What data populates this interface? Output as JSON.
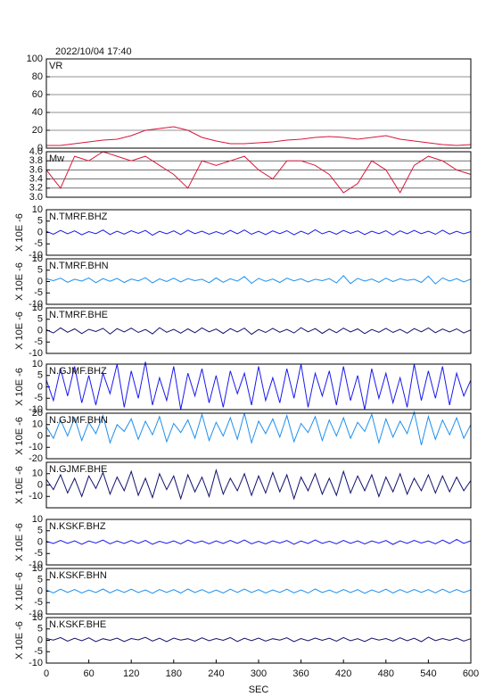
{
  "chart_data": [
    {
      "type": "line",
      "title": "2022/10/04 17:40",
      "label": "VR",
      "color": "#d8163c",
      "x": [
        0,
        20,
        40,
        60,
        80,
        100,
        120,
        140,
        160,
        180,
        200,
        220,
        240,
        260,
        280,
        300,
        320,
        340,
        360,
        380,
        400,
        420,
        440,
        460,
        480,
        500,
        520,
        540,
        560,
        580,
        600
      ],
      "values": [
        3,
        3,
        5,
        7,
        9,
        10,
        14,
        20,
        22,
        24,
        20,
        12,
        8,
        5,
        5,
        6,
        7,
        9,
        10,
        12,
        13,
        12,
        10,
        12,
        14,
        10,
        8,
        6,
        4,
        3,
        4
      ],
      "xlim": [
        0,
        600
      ],
      "ylim": [
        0,
        100
      ],
      "yticks": [
        0,
        20,
        40,
        60,
        80,
        100
      ],
      "grid": true
    },
    {
      "type": "line",
      "label": "Mw",
      "color": "#d8163c",
      "x": [
        0,
        20,
        40,
        60,
        80,
        100,
        120,
        140,
        160,
        180,
        200,
        220,
        240,
        260,
        280,
        300,
        320,
        340,
        360,
        380,
        400,
        420,
        440,
        460,
        480,
        500,
        520,
        540,
        560,
        580,
        600
      ],
      "values": [
        3.6,
        3.2,
        3.9,
        3.8,
        4.0,
        3.9,
        3.8,
        3.9,
        3.7,
        3.5,
        3.2,
        3.8,
        3.7,
        3.8,
        3.9,
        3.6,
        3.4,
        3.8,
        3.8,
        3.7,
        3.5,
        3.1,
        3.3,
        3.8,
        3.6,
        3.1,
        3.7,
        3.9,
        3.8,
        3.6,
        3.5
      ],
      "xlim": [
        0,
        600
      ],
      "ylim": [
        3,
        4
      ],
      "yticks": [
        {
          "value": 3,
          "label": "3.0"
        },
        3.2,
        3.4,
        3.6,
        3.8,
        {
          "value": 4,
          "label": "4.0"
        }
      ],
      "grid": true
    },
    {
      "type": "line",
      "xlabel": "SEC",
      "xlim": [
        0,
        600
      ],
      "xticks": [
        0,
        60,
        120,
        180,
        240,
        300,
        360,
        420,
        480,
        540,
        600
      ],
      "x": [
        0,
        10,
        20,
        30,
        40,
        50,
        60,
        70,
        80,
        90,
        100,
        110,
        120,
        130,
        140,
        150,
        160,
        170,
        180,
        190,
        200,
        210,
        220,
        230,
        240,
        250,
        260,
        270,
        280,
        290,
        300,
        310,
        320,
        330,
        340,
        350,
        360,
        370,
        380,
        390,
        400,
        410,
        420,
        430,
        440,
        450,
        460,
        470,
        480,
        490,
        500,
        510,
        520,
        530,
        540,
        550,
        560,
        570,
        580,
        590,
        600
      ],
      "series": [
        {
          "name": "N.TMRF.BHZ",
          "color": "#1a1aee",
          "ylabel": "X 10E -6",
          "ylim": [
            -10,
            10
          ],
          "yticks": [
            -10,
            -5,
            0,
            5,
            10
          ],
          "values": [
            0.5,
            -0.8,
            0.9,
            -0.6,
            0.7,
            -1.0,
            0.4,
            -0.5,
            1.1,
            -0.9,
            0.6,
            -0.7,
            0.8,
            -0.4,
            0.9,
            -1.2,
            0.5,
            -0.6,
            0.7,
            -0.9,
            1.0,
            -0.5,
            0.6,
            -0.8,
            0.4,
            -0.7,
            0.9,
            -0.6,
            1.1,
            -0.8,
            0.5,
            -0.9,
            0.7,
            -0.5,
            0.8,
            -1.0,
            0.6,
            -0.7,
            1.2,
            -0.6,
            0.5,
            -0.8,
            0.9,
            -0.4,
            0.7,
            -0.9,
            0.6,
            -0.5,
            0.8,
            -1.1,
            0.7,
            -0.6,
            0.9,
            -0.5,
            0.6,
            -0.8,
            1.0,
            -0.7,
            0.5,
            -0.6,
            0.4
          ]
        },
        {
          "name": "N.TMRF.BHN",
          "color": "#1e8fef",
          "ylabel": "X 10E -6",
          "ylim": [
            -10,
            10
          ],
          "yticks": [
            -10,
            -5,
            0,
            5,
            10
          ],
          "values": [
            1.2,
            0.4,
            1.5,
            -0.3,
            1.0,
            0.2,
            1.6,
            -0.5,
            1.3,
            0.1,
            1.4,
            -0.4,
            1.1,
            0.3,
            1.7,
            -0.6,
            1.2,
            0.0,
            1.5,
            -0.2,
            1.3,
            0.4,
            1.0,
            -0.5,
            1.6,
            -0.3,
            1.2,
            0.2,
            2.2,
            -0.8,
            1.4,
            0.1,
            1.1,
            -0.4,
            1.5,
            0.3,
            1.2,
            -0.2,
            1.0,
            0.4,
            1.3,
            -0.6,
            2.6,
            -0.9,
            1.4,
            0.2,
            1.1,
            -0.3,
            1.5,
            0.0,
            1.2,
            0.5,
            1.0,
            -0.4,
            2.4,
            -1.0,
            1.6,
            0.2,
            1.3,
            -0.2,
            1.1
          ]
        },
        {
          "name": "N.TMRF.BHE",
          "color": "#12126e",
          "ylabel": "X 10E -6",
          "ylim": [
            -10,
            10
          ],
          "yticks": [
            -10,
            -5,
            0,
            5,
            10
          ],
          "values": [
            0.4,
            -1.0,
            1.2,
            -0.7,
            0.8,
            -1.3,
            0.6,
            -0.4,
            1.0,
            -1.5,
            0.9,
            -0.6,
            1.1,
            -0.8,
            0.5,
            -1.4,
            1.3,
            -0.7,
            0.6,
            -1.1,
            0.8,
            -0.9,
            1.2,
            -0.5,
            0.7,
            -1.2,
            0.9,
            -0.6,
            1.1,
            -1.6,
            0.5,
            -0.8,
            1.0,
            -0.7,
            0.6,
            -1.0,
            1.3,
            -0.5,
            0.9,
            -1.2,
            0.7,
            -0.9,
            1.1,
            -0.6,
            0.8,
            -1.3,
            0.5,
            -0.7,
            1.0,
            -0.8,
            0.6,
            -1.1,
            0.9,
            -0.5,
            1.2,
            -0.9,
            0.7,
            -0.6,
            0.8,
            -1.0,
            0.3
          ]
        },
        {
          "name": "N.GJMF.BHZ",
          "color": "#1a1aee",
          "ylabel": "X 10E -6",
          "ylim": [
            -10,
            10
          ],
          "yticks": [
            -10,
            -5,
            0,
            5,
            10
          ],
          "values": [
            3,
            -6,
            8,
            -4,
            9,
            -7,
            5,
            -8,
            6,
            -3,
            10,
            -9,
            7,
            -5,
            11,
            -8,
            4,
            -6,
            9,
            -10,
            6,
            -4,
            8,
            -7,
            5,
            -9,
            7,
            -3,
            6,
            -8,
            9,
            -6,
            4,
            -7,
            8,
            -5,
            10,
            -9,
            6,
            -4,
            7,
            -8,
            9,
            -6,
            5,
            -10,
            8,
            -5,
            6,
            -7,
            4,
            -9,
            10,
            -6,
            7,
            -5,
            9,
            -8,
            6,
            -4,
            3
          ]
        },
        {
          "name": "N.GJMF.BHN",
          "color": "#1e8fef",
          "ylabel": "X 10E -6",
          "ylim": [
            -20,
            20
          ],
          "yticks": [
            -20,
            -10,
            0,
            10,
            20
          ],
          "values": [
            8,
            -2,
            14,
            0,
            16,
            -4,
            12,
            2,
            18,
            -6,
            10,
            4,
            15,
            -3,
            13,
            1,
            17,
            -5,
            11,
            3,
            14,
            -2,
            19,
            -4,
            12,
            0,
            16,
            -3,
            20,
            -6,
            13,
            2,
            15,
            -1,
            18,
            -5,
            11,
            3,
            17,
            -4,
            14,
            0,
            16,
            -2,
            12,
            4,
            19,
            -6,
            15,
            -1,
            13,
            2,
            21,
            -8,
            17,
            -3,
            14,
            1,
            16,
            -2,
            10
          ]
        },
        {
          "name": "N.GJMF.BHE",
          "color": "#12126e",
          "ylabel": "X 10E -6",
          "ylim": [
            -20,
            20
          ],
          "yticks": [
            -10,
            0,
            10
          ],
          "values": [
            5,
            -4,
            9,
            -7,
            6,
            -10,
            8,
            -3,
            11,
            -8,
            7,
            -5,
            12,
            -9,
            6,
            -11,
            10,
            -4,
            8,
            -12,
            9,
            -6,
            7,
            -10,
            13,
            -8,
            6,
            -5,
            10,
            -9,
            8,
            -7,
            11,
            -6,
            9,
            -12,
            7,
            -5,
            10,
            -8,
            6,
            -9,
            12,
            -7,
            8,
            -5,
            9,
            -10,
            7,
            -6,
            10,
            -8,
            6,
            -5,
            9,
            -7,
            8,
            -6,
            7,
            -5,
            4
          ]
        },
        {
          "name": "N.KSKF.BHZ",
          "color": "#1a1aee",
          "ylabel": "X 10E -6",
          "ylim": [
            -10,
            10
          ],
          "yticks": [
            -10,
            -5,
            0,
            5,
            10
          ],
          "values": [
            0.4,
            -0.6,
            0.8,
            -0.5,
            0.6,
            -0.9,
            0.5,
            -0.4,
            0.9,
            -0.7,
            0.5,
            -0.6,
            0.7,
            -0.5,
            0.8,
            -0.9,
            0.4,
            -0.5,
            0.6,
            -0.8,
            0.9,
            -0.4,
            0.5,
            -0.7,
            0.6,
            -0.6,
            0.8,
            -0.5,
            1.0,
            -0.7,
            0.4,
            -0.8,
            0.6,
            -0.4,
            0.7,
            -0.9,
            0.5,
            -0.6,
            1.0,
            -0.5,
            0.4,
            -0.7,
            0.8,
            -0.5,
            0.6,
            -0.8,
            0.5,
            -0.4,
            0.7,
            -1.0,
            0.6,
            -0.5,
            0.8,
            -0.4,
            0.5,
            -0.7,
            0.9,
            -0.6,
            1.2,
            -0.5,
            0.6
          ]
        },
        {
          "name": "N.KSKF.BHN",
          "color": "#1e8fef",
          "ylabel": "X 10E -6",
          "ylim": [
            -10,
            10
          ],
          "yticks": [
            -10,
            -5,
            0,
            5,
            10
          ],
          "values": [
            0.6,
            -0.7,
            0.9,
            -0.5,
            0.8,
            -0.8,
            0.5,
            -0.6,
            1.0,
            -0.7,
            0.7,
            -0.5,
            0.9,
            -0.6,
            0.6,
            -0.9,
            0.8,
            -0.5,
            0.7,
            -0.8,
            1.0,
            -0.6,
            0.7,
            -0.7,
            0.5,
            -0.8,
            0.9,
            -0.5,
            1.0,
            -0.6,
            0.7,
            -0.8,
            0.6,
            -0.5,
            0.9,
            -0.7,
            0.6,
            -0.8,
            1.0,
            -0.6,
            0.5,
            -0.7,
            0.8,
            -0.6,
            0.7,
            -0.9,
            0.6,
            -0.5,
            0.9,
            -0.8,
            0.7,
            -0.6,
            0.8,
            -0.5,
            0.7,
            -0.7,
            0.9,
            -0.6,
            0.8,
            -0.5,
            0.6
          ]
        },
        {
          "name": "N.KSKF.BHE",
          "color": "#12126e",
          "ylabel": "X 10E -6",
          "ylim": [
            -10,
            10
          ],
          "yticks": [
            -10,
            -5,
            0,
            5,
            10
          ],
          "values": [
            0.8,
            0.1,
            1.2,
            -0.4,
            0.9,
            -0.2,
            1.1,
            -0.6,
            0.7,
            0.0,
            1.0,
            -0.5,
            0.8,
            0.2,
            1.3,
            -0.3,
            0.9,
            -0.6,
            1.0,
            0.1,
            0.7,
            -0.4,
            1.1,
            -0.2,
            0.8,
            0.0,
            1.2,
            -0.5,
            0.9,
            -0.1,
            1.0,
            -0.3,
            0.7,
            0.1,
            1.1,
            -0.6,
            0.8,
            -0.2,
            1.0,
            0.0,
            0.9,
            -0.4,
            1.2,
            -0.2,
            0.7,
            -0.5,
            1.0,
            0.1,
            0.8,
            -0.3,
            1.1,
            -0.2,
            0.9,
            -0.6,
            1.4,
            -0.1,
            0.8,
            0.0,
            1.0,
            -0.3,
            0.7
          ]
        }
      ]
    }
  ]
}
